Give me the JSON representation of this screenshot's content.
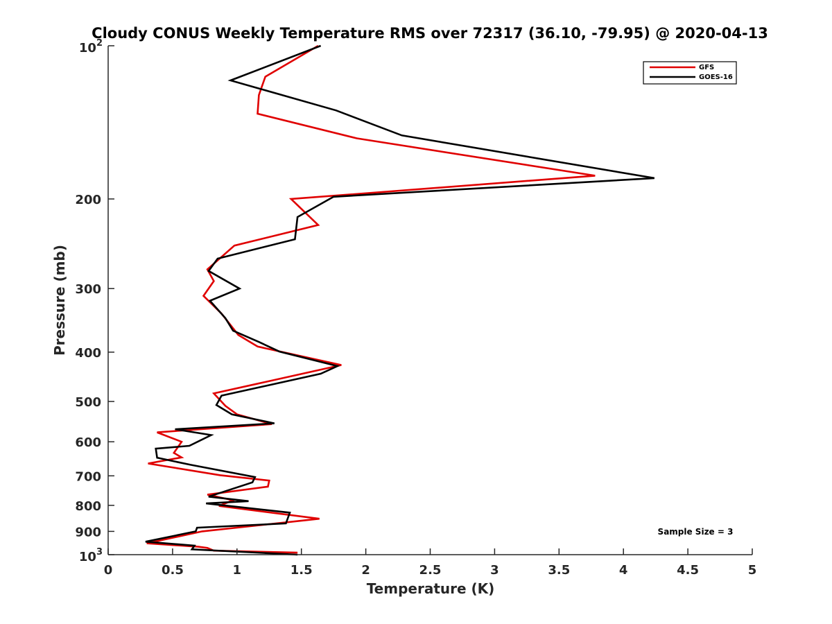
{
  "chart_data": {
    "type": "line",
    "title": "Cloudy CONUS Weekly Temperature RMS over 72317 (36.10, -79.95) @ 2020-04-13",
    "xlabel": "Temperature (K)",
    "ylabel": "Pressure (mb)",
    "xlim": [
      0,
      5
    ],
    "ylim": [
      100,
      1000
    ],
    "yscale": "log",
    "y_reversed": true,
    "x_ticks": [
      0,
      0.5,
      1,
      1.5,
      2,
      2.5,
      3,
      3.5,
      4,
      4.5,
      5
    ],
    "x_tick_labels": [
      "0",
      "0.5",
      "1",
      "1.5",
      "2",
      "2.5",
      "3",
      "3.5",
      "4",
      "4.5",
      "5"
    ],
    "y_ticks": [
      {
        "value": 100,
        "base": "10",
        "exp": "2"
      },
      {
        "value": 200,
        "label": "200"
      },
      {
        "value": 300,
        "label": "300"
      },
      {
        "value": 400,
        "label": "400"
      },
      {
        "value": 500,
        "label": "500"
      },
      {
        "value": 600,
        "label": "600"
      },
      {
        "value": 700,
        "label": "700"
      },
      {
        "value": 800,
        "label": "800"
      },
      {
        "value": 900,
        "label": "900"
      },
      {
        "value": 1000,
        "base": "10",
        "exp": "3"
      }
    ],
    "legend_position": "top-right",
    "grid": false,
    "annotation": "Sample Size = 3",
    "series": [
      {
        "name": "GFS",
        "color": "#e00000",
        "points": [
          [
            1.63,
            100
          ],
          [
            1.22,
            115
          ],
          [
            1.17,
            125
          ],
          [
            1.16,
            136
          ],
          [
            1.93,
            152
          ],
          [
            3.78,
            180
          ],
          [
            1.42,
            200
          ],
          [
            1.63,
            225
          ],
          [
            0.98,
            247
          ],
          [
            0.77,
            275
          ],
          [
            0.82,
            290
          ],
          [
            0.74,
            310
          ],
          [
            0.88,
            336
          ],
          [
            1.01,
            370
          ],
          [
            1.16,
            390
          ],
          [
            1.81,
            424
          ],
          [
            1.15,
            462
          ],
          [
            0.82,
            482
          ],
          [
            0.91,
            510
          ],
          [
            1.0,
            530
          ],
          [
            1.27,
            554
          ],
          [
            0.38,
            575
          ],
          [
            0.57,
            600
          ],
          [
            0.51,
            631
          ],
          [
            0.57,
            644
          ],
          [
            0.31,
            662
          ],
          [
            0.87,
            698
          ],
          [
            1.25,
            715
          ],
          [
            1.24,
            735
          ],
          [
            0.77,
            762
          ],
          [
            0.97,
            782
          ],
          [
            0.86,
            802
          ],
          [
            1.64,
            850
          ],
          [
            0.73,
            900
          ],
          [
            0.3,
            950
          ],
          [
            0.7,
            965
          ],
          [
            0.77,
            970
          ],
          [
            0.82,
            982
          ],
          [
            1.47,
            991
          ]
        ]
      },
      {
        "name": "GOES-16",
        "color": "#000000",
        "points": [
          [
            1.65,
            100
          ],
          [
            0.95,
            117
          ],
          [
            1.77,
            134
          ],
          [
            2.28,
            150
          ],
          [
            4.24,
            182
          ],
          [
            1.75,
            198
          ],
          [
            1.47,
            217
          ],
          [
            1.45,
            240
          ],
          [
            0.85,
            262
          ],
          [
            0.78,
            277
          ],
          [
            1.02,
            300
          ],
          [
            0.79,
            317
          ],
          [
            0.91,
            343
          ],
          [
            0.97,
            363
          ],
          [
            1.17,
            382
          ],
          [
            1.33,
            399
          ],
          [
            1.78,
            426
          ],
          [
            1.65,
            441
          ],
          [
            0.88,
            487
          ],
          [
            0.84,
            508
          ],
          [
            0.96,
            530
          ],
          [
            1.29,
            552
          ],
          [
            0.52,
            567
          ],
          [
            0.8,
            582
          ],
          [
            0.63,
            611
          ],
          [
            0.37,
            619
          ],
          [
            0.38,
            645
          ],
          [
            0.64,
            666
          ],
          [
            1.14,
            704
          ],
          [
            1.12,
            721
          ],
          [
            0.78,
            769
          ],
          [
            1.09,
            785
          ],
          [
            0.76,
            793
          ],
          [
            1.41,
            827
          ],
          [
            1.38,
            868
          ],
          [
            0.69,
            885
          ],
          [
            0.68,
            900
          ],
          [
            0.29,
            943
          ],
          [
            0.67,
            960
          ],
          [
            0.65,
            976
          ],
          [
            1.47,
            1000
          ]
        ]
      }
    ]
  }
}
